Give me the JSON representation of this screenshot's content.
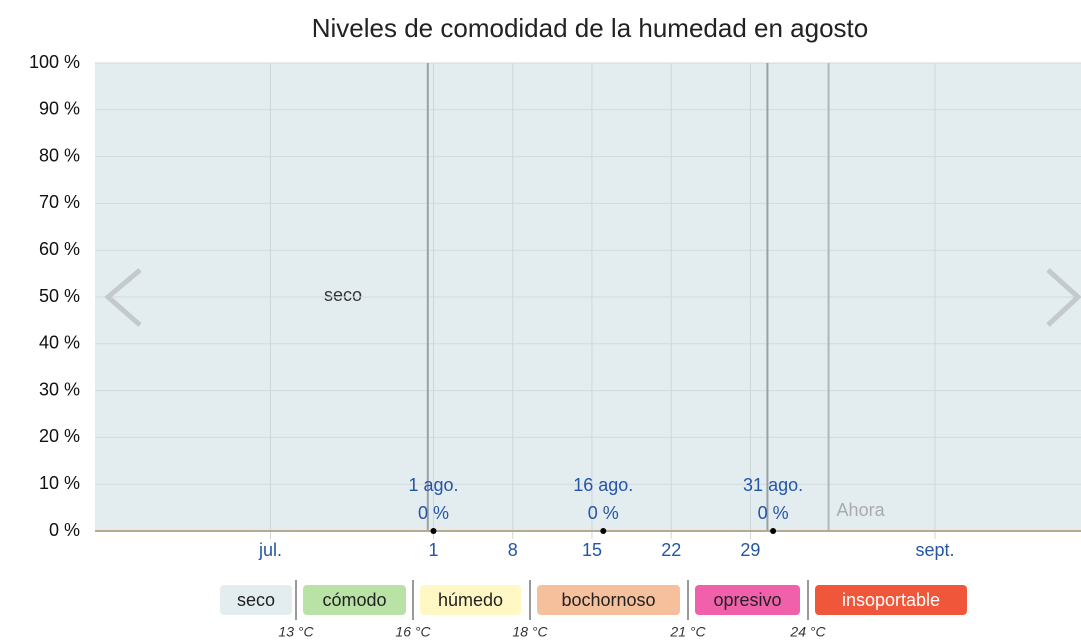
{
  "chart_data": {
    "type": "line",
    "title": "Niveles de comodidad de la humedad en agosto",
    "band_label": "seco",
    "band_color": "#e3edf0",
    "x": [
      1,
      16,
      31
    ],
    "values": [
      0,
      0,
      0
    ],
    "value_labels": [
      "0 %",
      "0 %",
      "0 %"
    ],
    "point_labels": [
      "1 ago.",
      "16 ago.",
      "31 ago."
    ],
    "color": "#000000",
    "xlim": [
      -28.9,
      58.2
    ],
    "xticks": [
      {
        "value": -13.4,
        "label": "jul."
      },
      1,
      8,
      15,
      22,
      29,
      {
        "value": 45.3,
        "label": "sept."
      }
    ],
    "ylim": [
      0,
      100
    ],
    "yticks": [
      {
        "value": 0,
        "label": "0 %"
      },
      {
        "value": 10,
        "label": "10 %"
      },
      {
        "value": 20,
        "label": "20 %"
      },
      {
        "value": 30,
        "label": "30 %"
      },
      {
        "value": 40,
        "label": "40 %"
      },
      {
        "value": 50,
        "label": "50 %"
      },
      {
        "value": 60,
        "label": "60 %"
      },
      {
        "value": 70,
        "label": "70 %"
      },
      {
        "value": 80,
        "label": "80 %"
      },
      {
        "value": 90,
        "label": "90 %"
      },
      {
        "value": 100,
        "label": "100 %"
      }
    ],
    "grid": true,
    "vlines": [
      0.5,
      30.5
    ],
    "now": {
      "label": "Ahora",
      "x": 35.9
    },
    "legend": [
      {
        "name": "seco",
        "color": "#e3edf0"
      },
      {
        "name": "cómodo",
        "color": "#b8e2a6"
      },
      {
        "name": "húmedo",
        "color": "#fff8c4"
      },
      {
        "name": "bochornoso",
        "color": "#f7c09c"
      },
      {
        "name": "opresivo",
        "color": "#f160aa"
      },
      {
        "name": "insoportable",
        "color": "#f0573a"
      }
    ],
    "thresholds": [
      "13 °C",
      "16 °C",
      "18 °C",
      "21 °C",
      "24 °C"
    ]
  }
}
